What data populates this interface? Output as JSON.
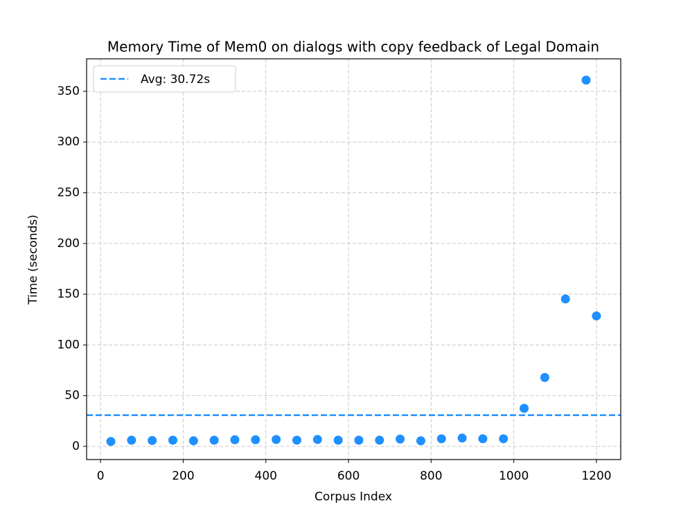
{
  "chart_data": {
    "type": "line",
    "title": "Memory Time of Mem0 on dialogs with copy feedback of Legal Domain",
    "x_label": "Corpus Index",
    "y_label": "Time (seconds)",
    "x": [
      25,
      75,
      125,
      175,
      225,
      275,
      325,
      375,
      425,
      475,
      525,
      575,
      625,
      675,
      725,
      775,
      825,
      875,
      925,
      975,
      1025,
      1075,
      1125,
      1175,
      1200
    ],
    "series": [
      {
        "name": "Time",
        "color": "#1e90ff",
        "values": [
          4.8,
          6.1,
          5.8,
          6.1,
          5.5,
          6.1,
          6.5,
          6.5,
          6.8,
          6.1,
          6.8,
          6.1,
          6.1,
          6.1,
          7.2,
          5.5,
          7.5,
          8.2,
          7.5,
          7.5,
          37.5,
          67.9,
          145.3,
          361,
          128.6
        ]
      }
    ],
    "reference_line": {
      "value": 30.72,
      "label": "Avg: 30.72s",
      "color": "#1e90ff",
      "dashed": true
    },
    "xlim": [
      -33.75,
      1258.75
    ],
    "ylim": [
      -13,
      382
    ],
    "xticks": [
      0,
      200,
      400,
      600,
      800,
      1000,
      1200
    ],
    "yticks": [
      0,
      50,
      100,
      150,
      200,
      250,
      300,
      350
    ],
    "grid": true,
    "legend_position": "upper-left"
  }
}
